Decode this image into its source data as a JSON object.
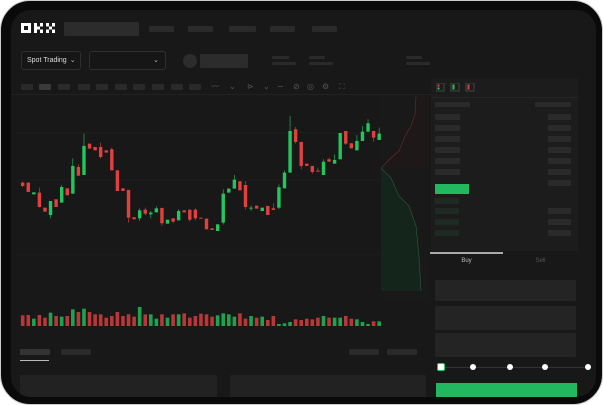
{
  "header": {
    "logo": "OKX",
    "nav_placeholders": 5
  },
  "controls": {
    "market_selector": "Spot Trading",
    "pair_selector": ""
  },
  "toolbar": {
    "icons": [
      "indicators-icon",
      "chevron-down-icon",
      "drawing-icon",
      "chevron-down-icon",
      "line-icon",
      "ruler-icon",
      "camera-icon",
      "settings-icon",
      "fullscreen-icon"
    ]
  },
  "colors": {
    "up": "#22c55e",
    "down": "#e0413f",
    "buy_button": "#22b85f",
    "background": "#181818"
  },
  "chart_data": {
    "type": "candlestick",
    "price_scale": "relative 0-100 (no axis labels shown)",
    "candles": [
      [
        46.3,
        47,
        43,
        43.8
      ],
      [
        46.3,
        46.3,
        39.3,
        39.3
      ],
      [
        37.5,
        39,
        37.5,
        39
      ],
      [
        38.8,
        42.5,
        27.5,
        28
      ],
      [
        27.5,
        27.5,
        24.5,
        24.5
      ],
      [
        22,
        32.5,
        19.5,
        32.5
      ],
      [
        33.8,
        33.8,
        28,
        28
      ],
      [
        31.3,
        44.5,
        31.3,
        43
      ],
      [
        42,
        42,
        36.8,
        36.8
      ],
      [
        38,
        64.5,
        38,
        58.8
      ],
      [
        58,
        60,
        51.5,
        51.5
      ],
      [
        52,
        83,
        52,
        73.8
      ],
      [
        75.5,
        75.5,
        71.8,
        71.8
      ],
      [
        73,
        73,
        70.5,
        70.5
      ],
      [
        73,
        76.3,
        64.5,
        65.5
      ],
      [
        70.5,
        70.5,
        68.8,
        68.8
      ],
      [
        71.3,
        72.5,
        55.5,
        55.5
      ],
      [
        55.5,
        55.5,
        40,
        40
      ],
      [
        42,
        42,
        40,
        40
      ],
      [
        40.8,
        40.8,
        16.3,
        20
      ],
      [
        20.3,
        20.3,
        18.8,
        18.8
      ],
      [
        19.5,
        27,
        17.5,
        25.5
      ],
      [
        26,
        27.5,
        21.8,
        23
      ],
      [
        22.5,
        25,
        19.5,
        23.8
      ],
      [
        24,
        28.5,
        24,
        27
      ],
      [
        27.3,
        27.3,
        13.8,
        15.8
      ],
      [
        15.5,
        18.5,
        15.5,
        18.5
      ],
      [
        19.5,
        19.5,
        15.8,
        17
      ],
      [
        18,
        26.3,
        18,
        25
      ],
      [
        25.5,
        25.5,
        24,
        24
      ],
      [
        26,
        26,
        17,
        18.5
      ],
      [
        26,
        27,
        18,
        19.5
      ],
      [
        20,
        20,
        19.5,
        19.5
      ],
      [
        19.3,
        19.3,
        11.3,
        11.3
      ],
      [
        12,
        12,
        10.8,
        10.8
      ],
      [
        10,
        15,
        10,
        15
      ],
      [
        16.3,
        41.3,
        15,
        38
      ],
      [
        38.8,
        41.8,
        38.8,
        41.8
      ],
      [
        41.8,
        52,
        41.8,
        48.5
      ],
      [
        47.3,
        47.3,
        40.5,
        40.5
      ],
      [
        44.5,
        47.5,
        26.3,
        28
      ],
      [
        27,
        29,
        25,
        27.5
      ],
      [
        29,
        29,
        26.8,
        26.8
      ],
      [
        25,
        27.5,
        25,
        27.5
      ],
      [
        28.8,
        28.8,
        22,
        22
      ],
      [
        27,
        30.8,
        25.8,
        25.8
      ],
      [
        27.5,
        45,
        26.3,
        42.8
      ],
      [
        42,
        55.5,
        42,
        53.8
      ],
      [
        53.8,
        96.3,
        53.8,
        85
      ],
      [
        86.3,
        88,
        75.5,
        76.8
      ],
      [
        76.8,
        76.8,
        56.3,
        58.8
      ],
      [
        60.5,
        60.5,
        58.8,
        58.8
      ],
      [
        58.8,
        58.8,
        53,
        54.3
      ],
      [
        55.3,
        57.5,
        54.5,
        54.5
      ],
      [
        52,
        63.8,
        52,
        62
      ],
      [
        63.8,
        65,
        62,
        62
      ],
      [
        60.5,
        67.5,
        60.5,
        63.3
      ],
      [
        63.8,
        83.5,
        63.8,
        83.5
      ],
      [
        85,
        85,
        74.5,
        75.5
      ],
      [
        75.8,
        75.8,
        72,
        72
      ],
      [
        70.5,
        82,
        70.5,
        77.5
      ],
      [
        77.5,
        88.8,
        77.5,
        84.5
      ],
      [
        84.5,
        93.8,
        84.5,
        90.8
      ],
      [
        85,
        85,
        77,
        80
      ],
      [
        78.3,
        87.5,
        78.3,
        83
      ]
    ],
    "volumes": [
      32,
      33,
      22,
      33,
      25,
      40,
      30,
      28,
      30,
      50,
      42,
      52,
      42,
      35,
      35,
      25,
      30,
      42,
      30,
      35,
      28,
      57,
      35,
      35,
      22,
      35,
      25,
      35,
      35,
      38,
      25,
      30,
      37,
      35,
      28,
      32,
      38,
      35,
      28,
      38,
      22,
      30,
      25,
      28,
      18,
      30,
      6,
      8,
      12,
      20,
      18,
      22,
      20,
      25,
      30,
      25,
      25,
      25,
      30,
      22,
      20,
      12,
      6,
      14,
      14
    ]
  },
  "order_book": {
    "view_icons": [
      "both-sides-icon",
      "bids-icon",
      "asks-icon"
    ],
    "ask_rows": 6,
    "bid_rows": 4
  },
  "trade": {
    "tabs": [
      {
        "label": "Buy"
      },
      {
        "label": "Sell"
      }
    ],
    "slider_value": 0,
    "slider_stops": [
      0,
      25,
      50,
      75,
      100
    ]
  }
}
